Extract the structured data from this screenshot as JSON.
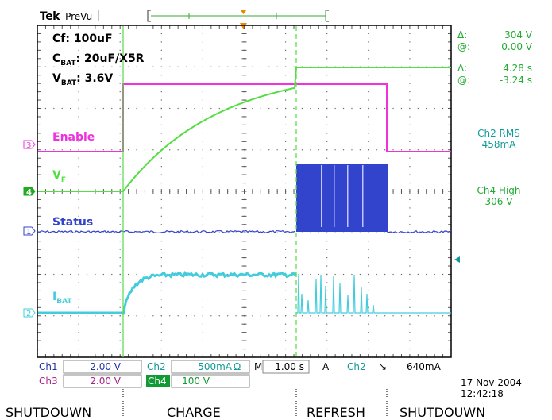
{
  "header": {
    "brand": "Tek",
    "mode": "PreVu"
  },
  "annotations": {
    "cf": "Cf: 100uF",
    "cbat_main": "C",
    "cbat_sub": "BAT",
    "cbat_rest": ": 20uF/X5R",
    "vbat_main": "V",
    "vbat_sub": "BAT",
    "vbat_rest": ": 3.6V"
  },
  "traces": {
    "enable": {
      "label": "Enable",
      "color": "#ee33dd",
      "channel": "3"
    },
    "vf": {
      "label_main": "V",
      "label_sub": "F",
      "color": "#55dd44",
      "channel": "4"
    },
    "status": {
      "label": "Status",
      "color": "#3344cc",
      "channel": "1"
    },
    "ibat": {
      "label_main": "I",
      "label_sub": "BAT",
      "color": "#44ccdd",
      "channel": "2"
    }
  },
  "cursor_readout": {
    "delta1_sym": "Δ:",
    "delta1_val": "304 V",
    "at1_sym": "@:",
    "at1_val": "0.00 V",
    "delta2_sym": "Δ:",
    "delta2_val": "4.28 s",
    "at2_sym": "@:",
    "at2_val": "-3.24 s"
  },
  "measurements": {
    "m1_line1": "Ch2 RMS",
    "m1_line2": "458mA",
    "m2_line1": "Ch4 High",
    "m2_line2": "306 V"
  },
  "status_bar": {
    "ch1_label": "Ch1",
    "ch1_value": "2.00 V",
    "ch2_label": "Ch2",
    "ch2_value": "500mA",
    "ch2_unit": "Ω",
    "timebase_label": "M",
    "timebase_value": "1.00 s",
    "trigger_mode": "A",
    "trigger_source": "Ch2",
    "trigger_slope": "↘",
    "trigger_level": "640mA",
    "ch3_label": "Ch3",
    "ch3_value": "2.00 V",
    "ch4_label": "Ch4",
    "ch4_value": "100 V",
    "date": "17 Nov 2004",
    "time": "12:42:18"
  },
  "phases": [
    "SHUTDOUWN",
    "CHARGE",
    "REFRESH",
    "SHUTDOUWN"
  ],
  "colors": {
    "enable": "#ee33dd",
    "vf": "#55dd44",
    "status": "#3344cc",
    "ibat": "#44ccdd",
    "readout": "#22aa33",
    "meas": "#119999",
    "ch1_text": "#2233aa",
    "ch3_text": "#aa2288",
    "ch2_text": "#119999",
    "ch4_text": "#119933"
  }
}
